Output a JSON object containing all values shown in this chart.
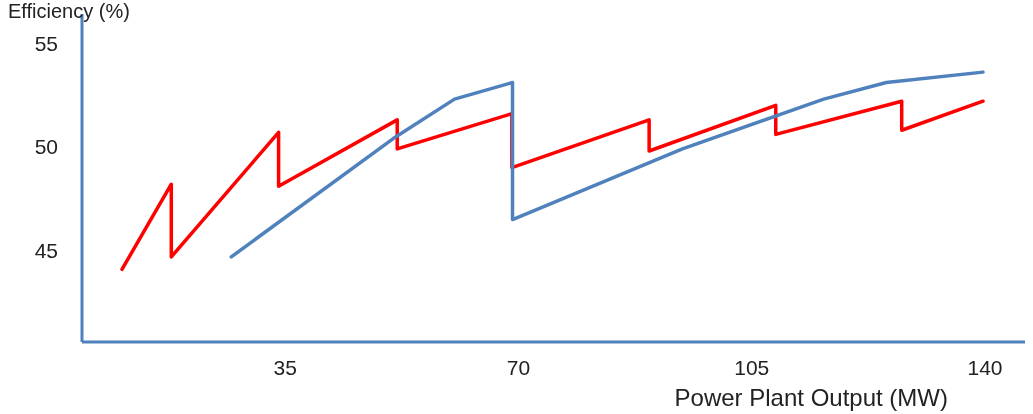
{
  "chart_data": {
    "type": "line",
    "ylabel": "Efficiency (%)",
    "xlabel": "Power Plant  Output (MW)",
    "xlim": [
      4.5,
      146
    ],
    "ylim": [
      40.7,
      56.5
    ],
    "xticks": [
      35,
      70,
      105,
      140
    ],
    "yticks": [
      45,
      50,
      55
    ],
    "grid": false,
    "marker": "none",
    "line_style": "solid",
    "series": [
      {
        "color": "#ff0000",
        "x": [
          10.5,
          17.9,
          17.9,
          34,
          34,
          51.8,
          51.8,
          69,
          69,
          89.6,
          89.6,
          108.6,
          108.6,
          127.5,
          127.5,
          139.7
        ],
        "values": [
          44.2,
          48.3,
          44.8,
          50.8,
          48.2,
          51.4,
          50,
          51.7,
          49.1,
          51.4,
          49.9,
          52.1,
          50.7,
          52.3,
          50.9,
          52.3
        ]
      },
      {
        "color": "#4f81bd",
        "x": [
          26.9,
          51.2,
          60.4,
          69.1,
          69.1,
          94.6,
          115.8,
          125.2,
          139.7
        ],
        "values": [
          44.8,
          50.5,
          52.4,
          53.2,
          46.6,
          50,
          52.4,
          53.2,
          53.7
        ]
      }
    ]
  }
}
